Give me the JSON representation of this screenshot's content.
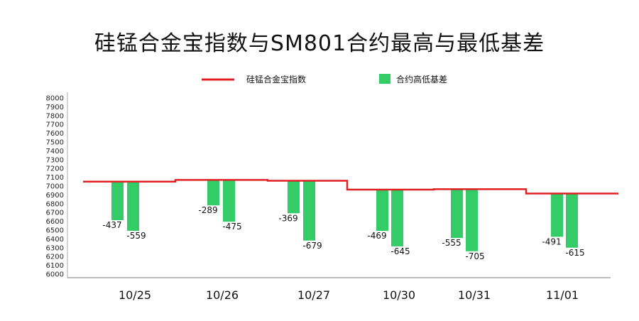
{
  "chart_data": {
    "type": "bar",
    "title": "硅锰合金宝指数与SM801合约最高与最低基差",
    "categories": [
      "10/25",
      "10/26",
      "10/27",
      "10/30",
      "10/31",
      "11/01"
    ],
    "ylim": [
      6000,
      8000
    ],
    "yticks": [
      6000,
      6100,
      6200,
      6300,
      6400,
      6500,
      6600,
      6700,
      6800,
      6900,
      7000,
      7100,
      7200,
      7300,
      7400,
      7500,
      7600,
      7700,
      7800,
      7900,
      8000
    ],
    "legend_position": "top-center",
    "grid": false,
    "series": [
      {
        "name": "硅锰合金宝指数",
        "kind": "step-line",
        "color": "#e02020",
        "values": [
          7050,
          7070,
          7060,
          6960,
          6965,
          6915
        ]
      },
      {
        "name": "合约高低基差",
        "kind": "bar",
        "color": "#33cc66",
        "pairs": [
          [
            -437,
            -559
          ],
          [
            -289,
            -475
          ],
          [
            -369,
            -679
          ],
          [
            -469,
            -645
          ],
          [
            -555,
            -705
          ],
          [
            -491,
            -615
          ]
        ]
      }
    ],
    "data_labels": [
      [
        "-437",
        "-559"
      ],
      [
        "-289",
        "-475"
      ],
      [
        "-369",
        "-679"
      ],
      [
        "-469",
        "-645"
      ],
      [
        "-555",
        "-705"
      ],
      [
        "-491",
        "-615"
      ]
    ]
  }
}
